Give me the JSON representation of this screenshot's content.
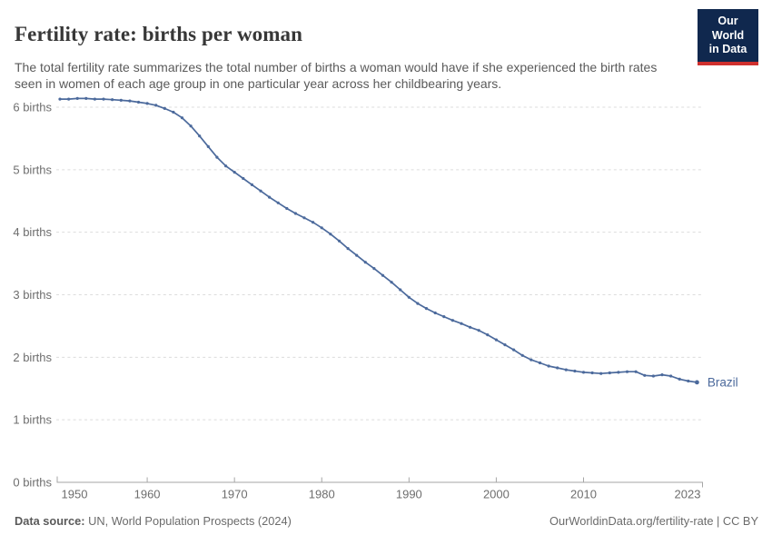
{
  "header": {
    "title": "Fertility rate: births per woman",
    "subtitle": "The total fertility rate summarizes the total number of births a woman would have if she experienced the birth rates seen in women of each age group in one particular year across her childbearing years.",
    "logo": {
      "line1": "Our World",
      "line2": "in Data"
    }
  },
  "chart_data": {
    "type": "line",
    "title": "Fertility rate: births per woman",
    "entity": "Brazil",
    "xlabel": "",
    "ylabel": "births",
    "xlim": [
      1950,
      2023
    ],
    "ylim": [
      0,
      6.33
    ],
    "grid": "horizontal-dashed",
    "legend_position": "end-of-line",
    "line_color": "#4c6a9c",
    "x": [
      1950,
      1951,
      1952,
      1953,
      1954,
      1955,
      1956,
      1957,
      1958,
      1959,
      1960,
      1961,
      1962,
      1963,
      1964,
      1965,
      1966,
      1967,
      1968,
      1969,
      1970,
      1971,
      1972,
      1973,
      1974,
      1975,
      1976,
      1977,
      1978,
      1979,
      1980,
      1981,
      1982,
      1983,
      1984,
      1985,
      1986,
      1987,
      1988,
      1989,
      1990,
      1991,
      1992,
      1993,
      1994,
      1995,
      1996,
      1997,
      1998,
      1999,
      2000,
      2001,
      2002,
      2003,
      2004,
      2005,
      2006,
      2007,
      2008,
      2009,
      2010,
      2011,
      2012,
      2013,
      2014,
      2015,
      2016,
      2017,
      2018,
      2019,
      2020,
      2021,
      2022,
      2023
    ],
    "values": [
      6.13,
      6.13,
      6.14,
      6.14,
      6.13,
      6.13,
      6.12,
      6.11,
      6.1,
      6.08,
      6.06,
      6.03,
      5.98,
      5.92,
      5.83,
      5.7,
      5.54,
      5.37,
      5.2,
      5.06,
      4.96,
      4.86,
      4.76,
      4.66,
      4.56,
      4.47,
      4.38,
      4.3,
      4.23,
      4.16,
      4.07,
      3.97,
      3.86,
      3.74,
      3.63,
      3.52,
      3.42,
      3.31,
      3.2,
      3.08,
      2.96,
      2.86,
      2.78,
      2.71,
      2.65,
      2.59,
      2.54,
      2.48,
      2.43,
      2.36,
      2.28,
      2.2,
      2.12,
      2.03,
      1.96,
      1.91,
      1.86,
      1.83,
      1.8,
      1.78,
      1.76,
      1.75,
      1.74,
      1.75,
      1.76,
      1.77,
      1.77,
      1.71,
      1.7,
      1.72,
      1.7,
      1.65,
      1.62,
      1.6
    ],
    "y_ticks": [
      {
        "value": 0,
        "label": "0 births"
      },
      {
        "value": 1,
        "label": "1 births"
      },
      {
        "value": 2,
        "label": "2 births"
      },
      {
        "value": 3,
        "label": "3 births"
      },
      {
        "value": 4,
        "label": "4 births"
      },
      {
        "value": 5,
        "label": "5 births"
      },
      {
        "value": 6,
        "label": "6 births"
      }
    ],
    "x_ticks": [
      {
        "value": 1950,
        "label": "1950"
      },
      {
        "value": 1960,
        "label": "1960"
      },
      {
        "value": 1970,
        "label": "1970"
      },
      {
        "value": 1980,
        "label": "1980"
      },
      {
        "value": 1990,
        "label": "1990"
      },
      {
        "value": 2000,
        "label": "2000"
      },
      {
        "value": 2010,
        "label": "2010"
      },
      {
        "value": 2023,
        "label": "2023"
      }
    ]
  },
  "colors": {
    "line": "#4c6a9c",
    "grid": "#dcdcdc",
    "axis": "#a6a6a6",
    "tick_text": "#6e6e6e",
    "title": "#373737",
    "subtitle": "#5a5a5a",
    "logo_bg": "#10284e",
    "logo_red": "#cf302e"
  },
  "footer": {
    "source_label": "Data source:",
    "source_value": "UN, World Population Prospects (2024)",
    "credit": "OurWorldinData.org/fertility-rate | CC BY"
  }
}
